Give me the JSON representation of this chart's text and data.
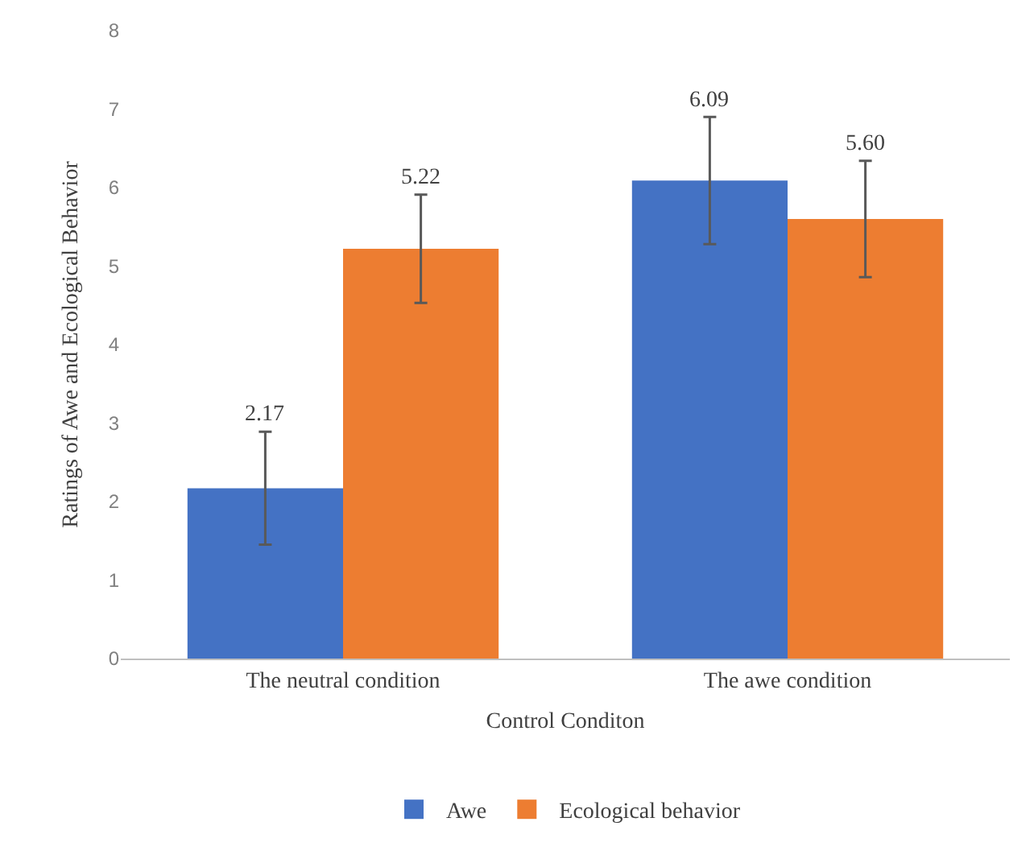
{
  "chart_data": {
    "type": "bar",
    "xlabel": "Control Conditon",
    "ylabel": "Ratings of Awe and Ecological Behavior",
    "categories": [
      "The neutral condition",
      "The awe condition"
    ],
    "series": [
      {
        "name": "Awe",
        "color": "#4472c4",
        "values": [
          2.17,
          6.09
        ],
        "errors": [
          0.72,
          0.81
        ],
        "value_labels": [
          "2.17",
          "6.09"
        ]
      },
      {
        "name": "Ecological behavior",
        "color": "#ed7d31",
        "values": [
          5.22,
          5.6
        ],
        "errors": [
          0.69,
          0.74
        ],
        "value_labels": [
          "5.22",
          "5.60"
        ]
      }
    ],
    "ylim": [
      0,
      8
    ],
    "yticks": [
      0,
      1,
      2,
      3,
      4,
      5,
      6,
      7,
      8
    ],
    "legend": "bottom"
  }
}
